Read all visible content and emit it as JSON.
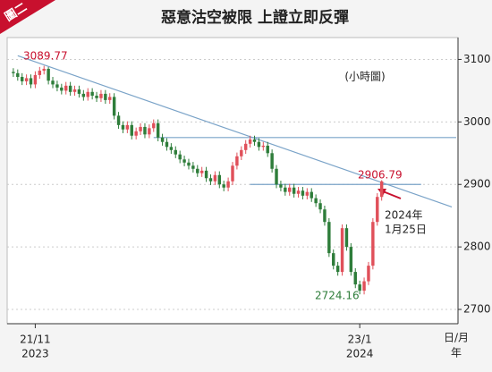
{
  "chart_data": {
    "type": "candlestick",
    "badge": "圖二",
    "title": "惡意沽空被限  上證立即反彈",
    "up_color": "#e0505a",
    "down_color": "#2e7d3a",
    "open": [
      3080,
      3078,
      3072,
      3065,
      3070,
      3060,
      3075,
      3082,
      3085,
      3066,
      3060,
      3055,
      3050,
      3058,
      3048,
      3052,
      3045,
      3040,
      3048,
      3042,
      3038,
      3045,
      3035,
      3040,
      3010,
      2995,
      2988,
      2995,
      2978,
      2985,
      2992,
      2980,
      2990,
      2998,
      2975,
      2968,
      2960,
      2955,
      2948,
      2940,
      2935,
      2930,
      2925,
      2918,
      2922,
      2910,
      2905,
      2915,
      2900,
      2895,
      2905,
      2930,
      2945,
      2955,
      2965,
      2972,
      2968,
      2960,
      2962,
      2950,
      2925,
      2900,
      2895,
      2888,
      2895,
      2885,
      2890,
      2882,
      2888,
      2878,
      2870,
      2860,
      2840,
      2790,
      2770,
      2760,
      2830,
      2800,
      2760,
      2740,
      2730,
      2745,
      2770,
      2840,
      2880
    ],
    "high": [
      3086,
      3084,
      3078,
      3076,
      3076,
      3081,
      3088,
      3089.77,
      3088,
      3072,
      3066,
      3061,
      3064,
      3064,
      3058,
      3058,
      3051,
      3054,
      3054,
      3048,
      3051,
      3051,
      3046,
      3046,
      3016,
      3001,
      3001,
      3001,
      2991,
      2998,
      2998,
      2996,
      3004,
      3004,
      2981,
      2974,
      2966,
      2961,
      2954,
      2946,
      2941,
      2936,
      2931,
      2928,
      2928,
      2916,
      2921,
      2921,
      2906,
      2911,
      2936,
      2951,
      2961,
      2971,
      2978,
      2978,
      2974,
      2968,
      2968,
      2956,
      2931,
      2906,
      2901,
      2901,
      2901,
      2896,
      2896,
      2894,
      2894,
      2884,
      2876,
      2866,
      2846,
      2796,
      2776,
      2836,
      2836,
      2806,
      2766,
      2746,
      2751,
      2776,
      2846,
      2886,
      2906.79
    ],
    "low": [
      3072,
      3066,
      3059,
      3059,
      3054,
      3054,
      3069,
      3076,
      3060,
      3054,
      3049,
      3044,
      3044,
      3042,
      3042,
      3039,
      3034,
      3034,
      3036,
      3032,
      3032,
      3029,
      3029,
      3004,
      2989,
      2982,
      2982,
      2972,
      2972,
      2979,
      2974,
      2974,
      2984,
      2969,
      2962,
      2954,
      2949,
      2942,
      2934,
      2929,
      2924,
      2919,
      2912,
      2912,
      2904,
      2899,
      2899,
      2894,
      2889,
      2889,
      2899,
      2924,
      2939,
      2949,
      2959,
      2962,
      2954,
      2954,
      2944,
      2919,
      2894,
      2889,
      2882,
      2882,
      2879,
      2879,
      2876,
      2876,
      2872,
      2864,
      2854,
      2834,
      2784,
      2764,
      2754,
      2754,
      2794,
      2754,
      2734,
      2724.16,
      2724,
      2739,
      2764,
      2834,
      2874
    ],
    "close": [
      3078,
      3072,
      3065,
      3070,
      3060,
      3075,
      3082,
      3085,
      3066,
      3060,
      3055,
      3050,
      3058,
      3048,
      3052,
      3045,
      3040,
      3048,
      3042,
      3038,
      3045,
      3035,
      3040,
      3010,
      2995,
      2988,
      2995,
      2978,
      2985,
      2992,
      2980,
      2990,
      2998,
      2975,
      2968,
      2960,
      2955,
      2948,
      2940,
      2935,
      2930,
      2925,
      2918,
      2922,
      2910,
      2905,
      2915,
      2900,
      2895,
      2905,
      2930,
      2945,
      2955,
      2965,
      2972,
      2968,
      2960,
      2962,
      2950,
      2925,
      2900,
      2895,
      2888,
      2895,
      2885,
      2890,
      2882,
      2888,
      2878,
      2870,
      2860,
      2840,
      2790,
      2770,
      2760,
      2830,
      2800,
      2760,
      2740,
      2730,
      2745,
      2770,
      2840,
      2880,
      2905
    ],
    "lines": [
      {
        "color": "#7aa3c8",
        "x": [
          1,
          100
        ],
        "y": [
          3106,
          2864
        ]
      },
      {
        "color": "#7aa3c8",
        "x": [
          32,
          101
        ],
        "y": [
          2975,
          2975
        ]
      },
      {
        "color": "#7aa3c8",
        "x": [
          54,
          93
        ],
        "y": [
          2900,
          2900
        ]
      }
    ],
    "annotations": {
      "high": "3089.77",
      "peak": "2906.79",
      "low": "2724.16",
      "timeframe": "(小時圖)",
      "date": [
        "2024年",
        "1月25日"
      ]
    },
    "xlim": [
      -1,
      101
    ],
    "xticks": [
      {
        "value": 5,
        "label": "21/11",
        "year": "2023"
      },
      {
        "value": 79,
        "label": "23/1",
        "year": "2024"
      }
    ],
    "x_label": "日/月",
    "x_label_year": "年",
    "ylim": [
      2680,
      3135
    ],
    "yticks": [
      2700,
      2800,
      2900,
      3000,
      3100
    ],
    "grid": true
  }
}
